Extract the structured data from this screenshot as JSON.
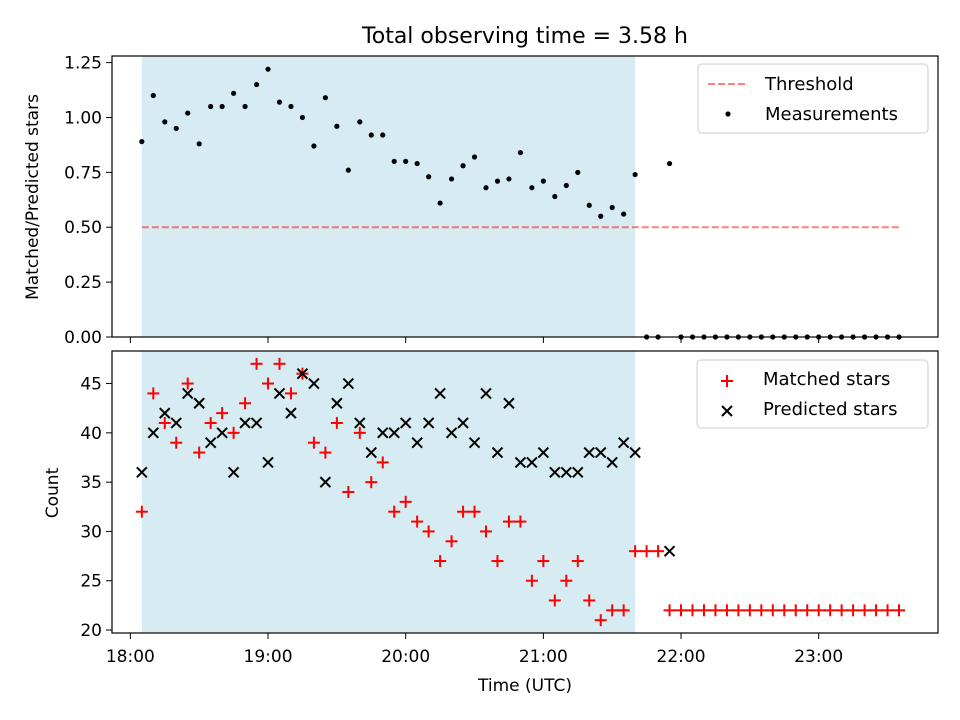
{
  "title": "Total observing time = 3.58 h",
  "colors": {
    "shade": "#add8e6",
    "threshold": "#ff0000",
    "measurements": "#000000",
    "matched": "#ff0000",
    "predicted": "#000000"
  },
  "chart_data": [
    {
      "type": "scatter",
      "name": "ratio",
      "ylabel": "Matched/Predicted stars",
      "ylim": [
        0,
        1.28
      ],
      "yticks": [
        "0.00",
        "0.25",
        "0.50",
        "0.75",
        "1.00",
        "1.25"
      ],
      "xlim": [
        "17:52",
        "23:52"
      ],
      "shaded_span": [
        "18:05",
        "21:40"
      ],
      "legend": {
        "position": "upper right",
        "entries": [
          "Threshold",
          "Measurements"
        ]
      },
      "series": [
        {
          "name": "Threshold",
          "kind": "line",
          "style": "dashed",
          "x": [
            "18:05",
            "23:35"
          ],
          "y": [
            0.5,
            0.5
          ]
        },
        {
          "name": "Measurements",
          "kind": "points",
          "x": [
            "18:05",
            "18:10",
            "18:15",
            "18:20",
            "18:25",
            "18:30",
            "18:35",
            "18:40",
            "18:45",
            "18:50",
            "18:55",
            "19:00",
            "19:05",
            "19:10",
            "19:15",
            "19:20",
            "19:25",
            "19:30",
            "19:35",
            "19:40",
            "19:45",
            "19:50",
            "19:55",
            "20:00",
            "20:05",
            "20:10",
            "20:15",
            "20:20",
            "20:25",
            "20:30",
            "20:35",
            "20:40",
            "20:45",
            "20:50",
            "20:55",
            "21:00",
            "21:05",
            "21:10",
            "21:15",
            "21:20",
            "21:25",
            "21:30",
            "21:35",
            "21:40",
            "21:45",
            "21:50",
            "21:55",
            "22:00",
            "22:05",
            "22:10",
            "22:15",
            "22:20",
            "22:25",
            "22:30",
            "22:35",
            "22:40",
            "22:45",
            "22:50",
            "22:55",
            "23:00",
            "23:05",
            "23:10",
            "23:15",
            "23:20",
            "23:25",
            "23:30",
            "23:35"
          ],
          "y": [
            0.89,
            1.1,
            0.98,
            0.95,
            1.02,
            0.88,
            1.05,
            1.05,
            1.11,
            1.05,
            1.15,
            1.22,
            1.07,
            1.05,
            1.0,
            0.87,
            1.09,
            0.96,
            0.76,
            0.98,
            0.92,
            0.92,
            0.8,
            0.8,
            0.79,
            0.73,
            0.61,
            0.72,
            0.78,
            0.82,
            0.68,
            0.71,
            0.72,
            0.84,
            0.68,
            0.71,
            0.64,
            0.69,
            0.75,
            0.6,
            0.55,
            0.59,
            0.56,
            0.74,
            0.0,
            0.0,
            0.79,
            0.0,
            0.0,
            0.0,
            0.0,
            0.0,
            0.0,
            0.0,
            0.0,
            0.0,
            0.0,
            0.0,
            0.0,
            0.0,
            0.0,
            0.0,
            0.0,
            0.0,
            0.0,
            0.0,
            0.0
          ]
        }
      ]
    },
    {
      "type": "scatter",
      "name": "counts",
      "xlabel": "Time (UTC)",
      "ylabel": "Count",
      "ylim": [
        19.7,
        48.3
      ],
      "yticks": [
        "20",
        "25",
        "30",
        "35",
        "40",
        "45"
      ],
      "xlim": [
        "17:52",
        "23:52"
      ],
      "xticks": [
        "18:00",
        "19:00",
        "20:00",
        "21:00",
        "22:00",
        "23:00"
      ],
      "shaded_span": [
        "18:05",
        "21:40"
      ],
      "legend": {
        "position": "upper right",
        "entries": [
          "Matched stars",
          "Predicted stars"
        ]
      },
      "series": [
        {
          "name": "Matched stars",
          "marker": "+",
          "x": [
            "18:05",
            "18:10",
            "18:15",
            "18:20",
            "18:25",
            "18:30",
            "18:35",
            "18:40",
            "18:45",
            "18:50",
            "18:55",
            "19:00",
            "19:05",
            "19:10",
            "19:15",
            "19:20",
            "19:25",
            "19:30",
            "19:35",
            "19:40",
            "19:45",
            "19:50",
            "19:55",
            "20:00",
            "20:05",
            "20:10",
            "20:15",
            "20:20",
            "20:25",
            "20:30",
            "20:35",
            "20:40",
            "20:45",
            "20:50",
            "20:55",
            "21:00",
            "21:05",
            "21:10",
            "21:15",
            "21:20",
            "21:25",
            "21:30",
            "21:35",
            "21:40",
            "21:45",
            "21:50",
            "21:55",
            "22:00",
            "22:05",
            "22:10",
            "22:15",
            "22:20",
            "22:25",
            "22:30",
            "22:35",
            "22:40",
            "22:45",
            "22:50",
            "22:55",
            "23:00",
            "23:05",
            "23:10",
            "23:15",
            "23:20",
            "23:25",
            "23:30",
            "23:35"
          ],
          "y": [
            32,
            44,
            41,
            39,
            45,
            38,
            41,
            42,
            40,
            43,
            47,
            45,
            47,
            44,
            46,
            39,
            38,
            41,
            34,
            40,
            35,
            37,
            32,
            33,
            31,
            30,
            27,
            29,
            32,
            32,
            30,
            27,
            31,
            31,
            25,
            27,
            23,
            25,
            27,
            23,
            21,
            22,
            22,
            28,
            28,
            28,
            22,
            22,
            22,
            22,
            22,
            22,
            22,
            22,
            22,
            22,
            22,
            22,
            22,
            22,
            22,
            22,
            22,
            22,
            22,
            22,
            22
          ]
        },
        {
          "name": "Predicted stars",
          "marker": "x",
          "x": [
            "18:05",
            "18:10",
            "18:15",
            "18:20",
            "18:25",
            "18:30",
            "18:35",
            "18:40",
            "18:45",
            "18:50",
            "18:55",
            "19:00",
            "19:05",
            "19:10",
            "19:15",
            "19:20",
            "19:25",
            "19:30",
            "19:35",
            "19:40",
            "19:45",
            "19:50",
            "19:55",
            "20:00",
            "20:05",
            "20:10",
            "20:15",
            "20:20",
            "20:25",
            "20:30",
            "20:35",
            "20:40",
            "20:45",
            "20:50",
            "20:55",
            "21:00",
            "21:05",
            "21:10",
            "21:15",
            "21:20",
            "21:25",
            "21:30",
            "21:35",
            "21:40",
            "21:55"
          ],
          "y": [
            36,
            40,
            42,
            41,
            44,
            43,
            39,
            40,
            36,
            41,
            41,
            37,
            44,
            42,
            46,
            45,
            35,
            43,
            45,
            41,
            38,
            40,
            40,
            41,
            39,
            41,
            44,
            40,
            41,
            39,
            44,
            38,
            43,
            37,
            37,
            38,
            36,
            36,
            36,
            38,
            38,
            37,
            39,
            38,
            28
          ]
        }
      ]
    }
  ]
}
